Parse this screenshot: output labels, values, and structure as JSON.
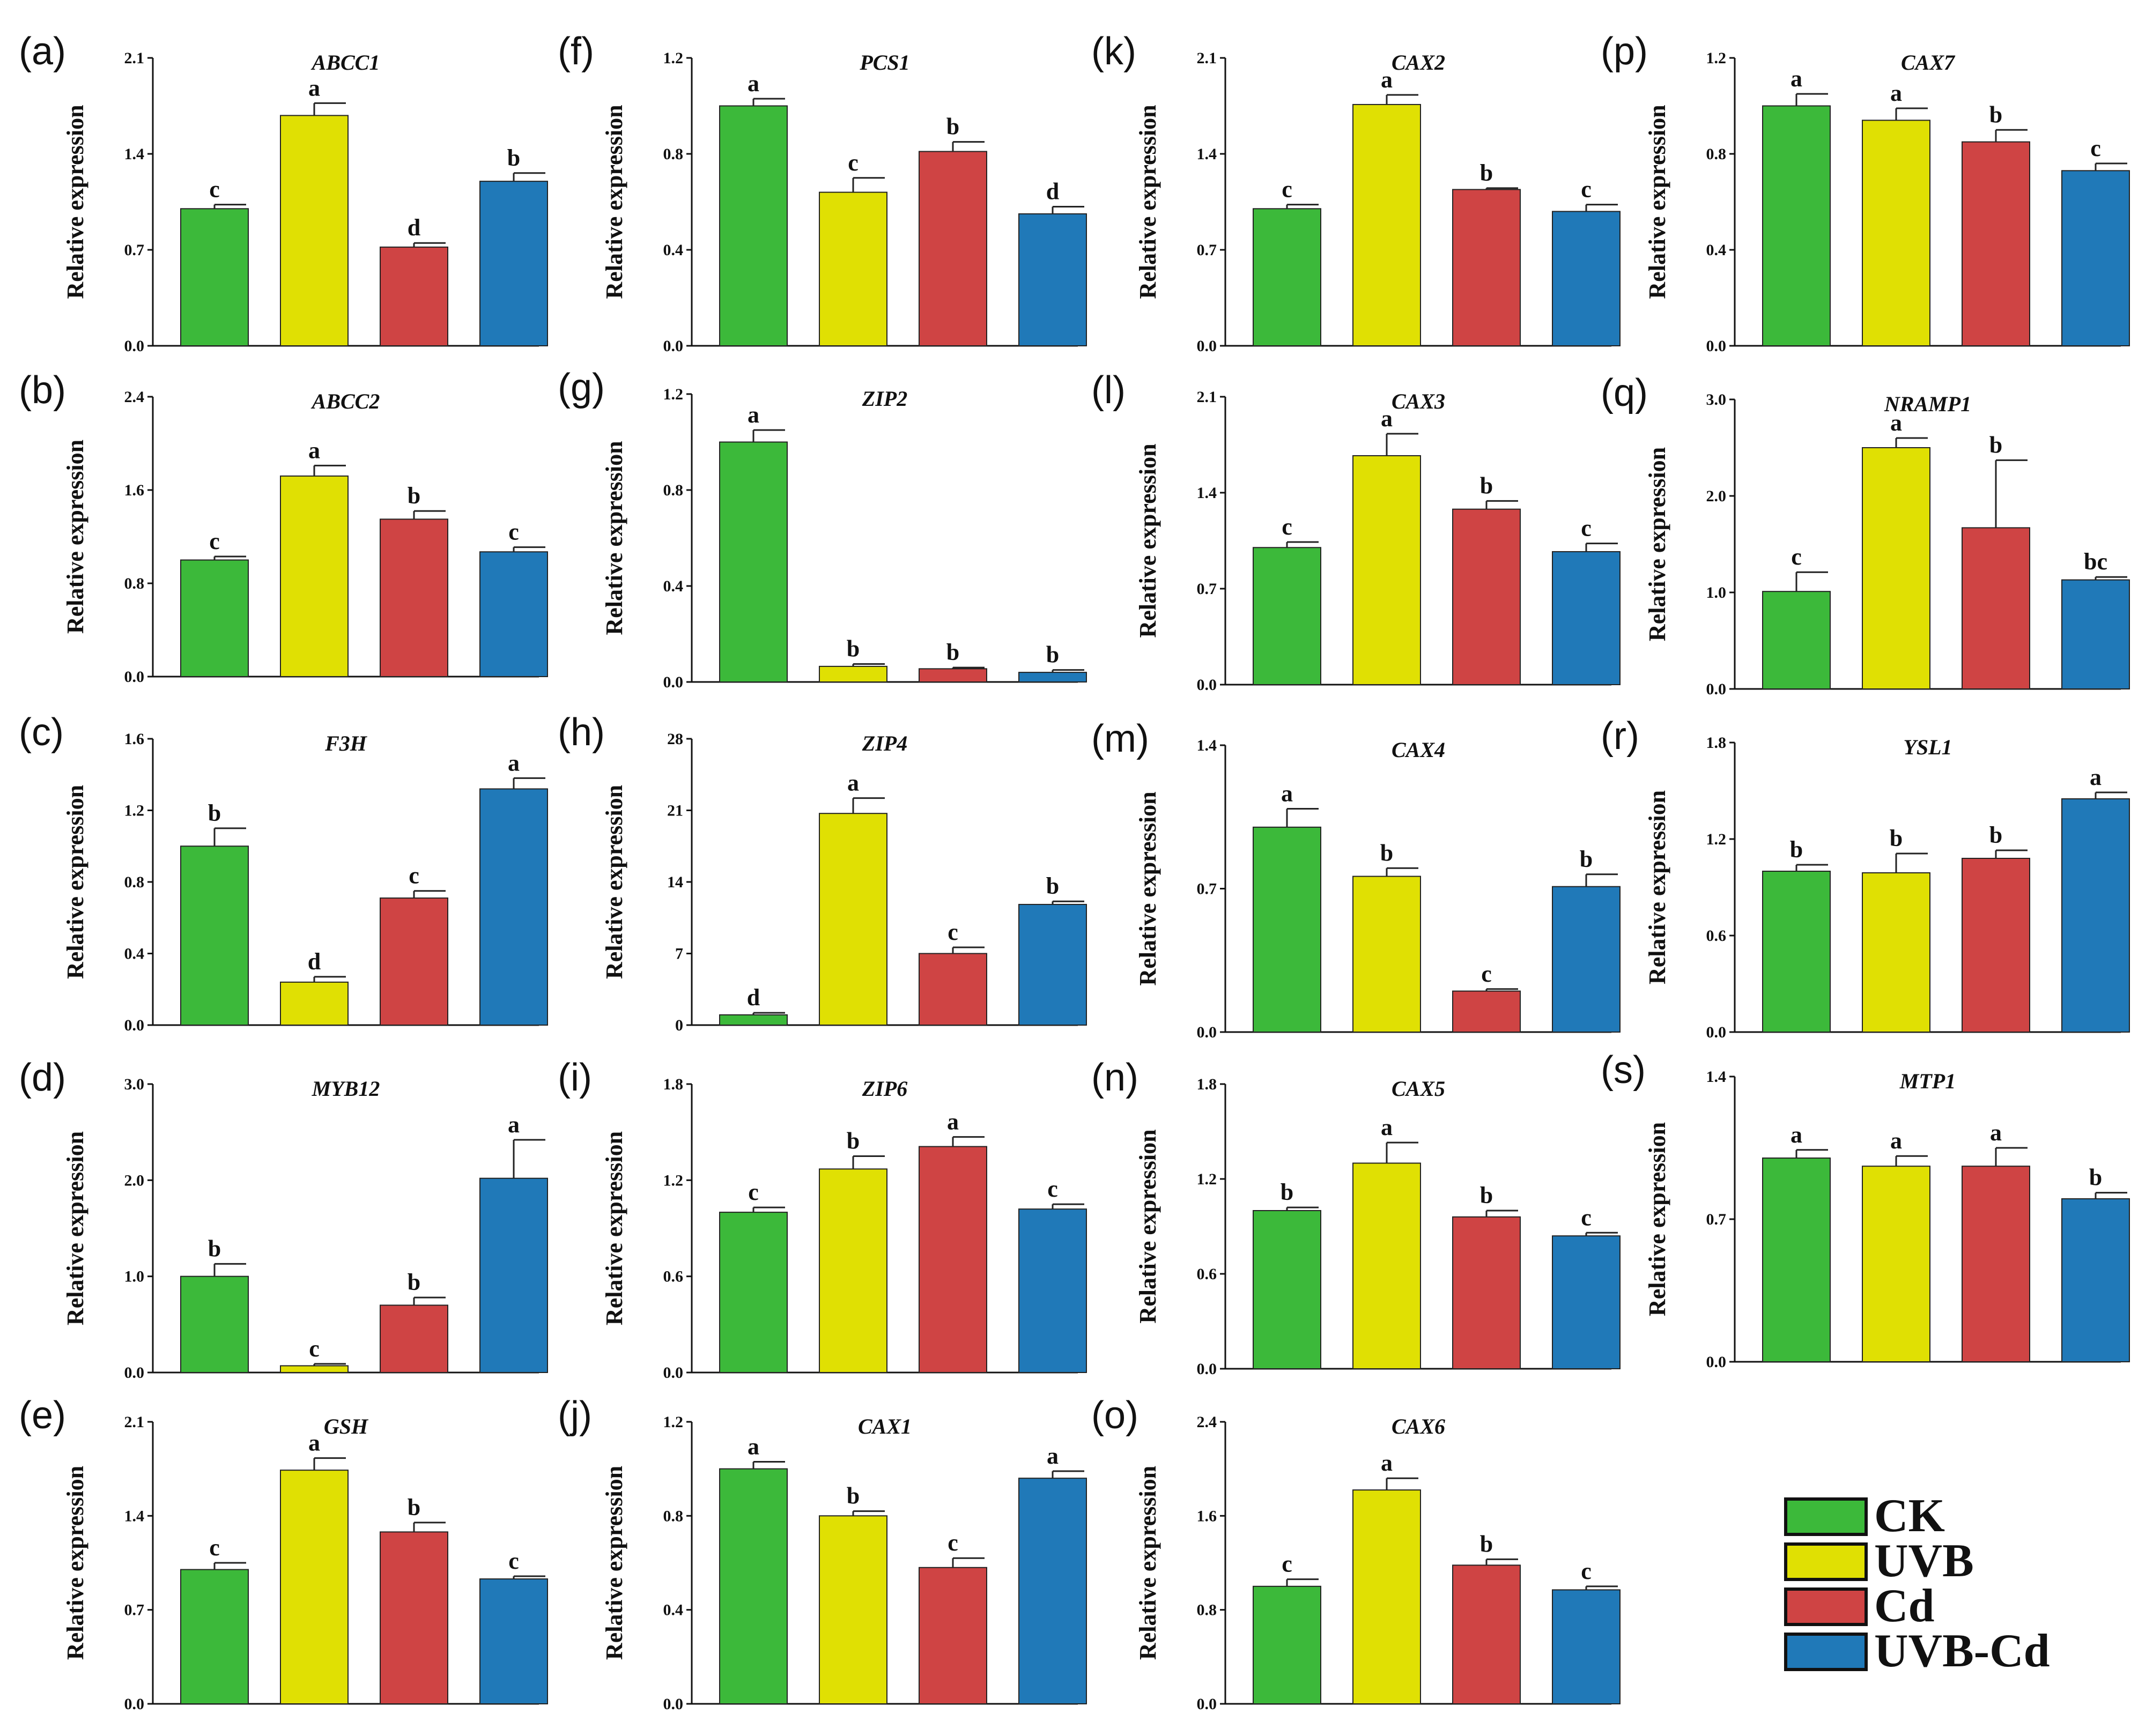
{
  "legend": {
    "items": [
      {
        "name": "CK",
        "color": "#3cb93a"
      },
      {
        "name": "UVB",
        "color": "#e0e003"
      },
      {
        "name": "Cd",
        "color": "#cf4444"
      },
      {
        "name": "UVB-Cd",
        "color": "#2079b8"
      }
    ]
  },
  "chart_data": [
    {
      "panel": "(a)",
      "type": "bar",
      "title": "ABCC1",
      "ylabel": "Relative expression",
      "categories": [
        "CK",
        "UVB",
        "Cd",
        "UVB-Cd"
      ],
      "values": [
        1.0,
        1.68,
        0.72,
        1.2
      ],
      "errors": [
        0.03,
        0.09,
        0.03,
        0.06
      ],
      "letters": [
        "c",
        "a",
        "d",
        "b"
      ],
      "ylim": [
        0,
        2.1
      ],
      "ticks": [
        "0.0",
        "0.7",
        "1.4",
        "2.1"
      ]
    },
    {
      "panel": "(b)",
      "type": "bar",
      "title": "ABCC2",
      "ylabel": "Relative expression",
      "categories": [
        "CK",
        "UVB",
        "Cd",
        "UVB-Cd"
      ],
      "values": [
        1.0,
        1.72,
        1.35,
        1.07
      ],
      "errors": [
        0.03,
        0.09,
        0.07,
        0.04
      ],
      "letters": [
        "c",
        "a",
        "b",
        "c"
      ],
      "ylim": [
        0,
        2.4
      ],
      "ticks": [
        "0.0",
        "0.8",
        "1.6",
        "2.4"
      ]
    },
    {
      "panel": "(c)",
      "type": "bar",
      "title": "F3H",
      "ylabel": "Relative expression",
      "categories": [
        "CK",
        "UVB",
        "Cd",
        "UVB-Cd"
      ],
      "values": [
        1.0,
        0.24,
        0.71,
        1.32
      ],
      "errors": [
        0.1,
        0.03,
        0.04,
        0.06
      ],
      "letters": [
        "b",
        "d",
        "c",
        "a"
      ],
      "ylim": [
        0,
        1.6
      ],
      "ticks": [
        "0.0",
        "0.4",
        "0.8",
        "1.2",
        "1.6"
      ]
    },
    {
      "panel": "(d)",
      "type": "bar",
      "title": "MYB12",
      "ylabel": "Relative expression",
      "categories": [
        "CK",
        "UVB",
        "Cd",
        "UVB-Cd"
      ],
      "values": [
        1.0,
        0.07,
        0.7,
        2.02
      ],
      "errors": [
        0.13,
        0.02,
        0.08,
        0.4
      ],
      "letters": [
        "b",
        "c",
        "b",
        "a"
      ],
      "ylim": [
        0,
        3.0
      ],
      "ticks": [
        "0.0",
        "1.0",
        "2.0",
        "3.0"
      ]
    },
    {
      "panel": "(e)",
      "type": "bar",
      "title": "GSH",
      "ylabel": "Relative expression",
      "categories": [
        "CK",
        "UVB",
        "Cd",
        "UVB-Cd"
      ],
      "values": [
        1.0,
        1.74,
        1.28,
        0.93
      ],
      "errors": [
        0.05,
        0.09,
        0.07,
        0.02
      ],
      "letters": [
        "c",
        "a",
        "b",
        "c"
      ],
      "ylim": [
        0,
        2.1
      ],
      "ticks": [
        "0.0",
        "0.7",
        "1.4",
        "2.1"
      ]
    },
    {
      "panel": "(f)",
      "type": "bar",
      "title": "PCS1",
      "ylabel": "Relative expression",
      "categories": [
        "CK",
        "UVB",
        "Cd",
        "UVB-Cd"
      ],
      "values": [
        1.0,
        0.64,
        0.81,
        0.55
      ],
      "errors": [
        0.03,
        0.06,
        0.04,
        0.03
      ],
      "letters": [
        "a",
        "c",
        "b",
        "d"
      ],
      "ylim": [
        0,
        1.2
      ],
      "ticks": [
        "0.0",
        "0.4",
        "0.8",
        "1.2"
      ]
    },
    {
      "panel": "(g)",
      "type": "bar",
      "title": "ZIP2",
      "ylabel": "Relative expression",
      "categories": [
        "CK",
        "UVB",
        "Cd",
        "UVB-Cd"
      ],
      "values": [
        1.0,
        0.065,
        0.055,
        0.04
      ],
      "errors": [
        0.05,
        0.01,
        0.005,
        0.01
      ],
      "letters": [
        "a",
        "b",
        "b",
        "b"
      ],
      "ylim": [
        0,
        1.2
      ],
      "ticks": [
        "0.0",
        "0.4",
        "0.8",
        "1.2"
      ]
    },
    {
      "panel": "(h)",
      "type": "bar",
      "title": "ZIP4",
      "ylabel": "Relative expression",
      "categories": [
        "CK",
        "UVB",
        "Cd",
        "UVB-Cd"
      ],
      "values": [
        1.0,
        20.7,
        7.0,
        11.8
      ],
      "errors": [
        0.2,
        1.5,
        0.6,
        0.3
      ],
      "letters": [
        "d",
        "a",
        "c",
        "b"
      ],
      "ylim": [
        0,
        28
      ],
      "ticks": [
        "0",
        "7",
        "14",
        "21",
        "28"
      ]
    },
    {
      "panel": "(i)",
      "type": "bar",
      "title": "ZIP6",
      "ylabel": "Relative expression",
      "categories": [
        "CK",
        "UVB",
        "Cd",
        "UVB-Cd"
      ],
      "values": [
        1.0,
        1.27,
        1.41,
        1.02
      ],
      "errors": [
        0.03,
        0.08,
        0.06,
        0.03
      ],
      "letters": [
        "c",
        "b",
        "a",
        "c"
      ],
      "ylim": [
        0,
        1.8
      ],
      "ticks": [
        "0.0",
        "0.6",
        "1.2",
        "1.8"
      ]
    },
    {
      "panel": "(j)",
      "type": "bar",
      "title": "CAX1",
      "ylabel": "Relative expression",
      "categories": [
        "CK",
        "UVB",
        "Cd",
        "UVB-Cd"
      ],
      "values": [
        1.0,
        0.8,
        0.58,
        0.96
      ],
      "errors": [
        0.03,
        0.02,
        0.04,
        0.03
      ],
      "letters": [
        "a",
        "b",
        "c",
        "a"
      ],
      "ylim": [
        0,
        1.2
      ],
      "ticks": [
        "0.0",
        "0.4",
        "0.8",
        "1.2"
      ]
    },
    {
      "panel": "(k)",
      "type": "bar",
      "title": "CAX2",
      "ylabel": "Relative expression",
      "categories": [
        "CK",
        "UVB",
        "Cd",
        "UVB-Cd"
      ],
      "values": [
        1.0,
        1.76,
        1.14,
        0.98
      ],
      "errors": [
        0.03,
        0.07,
        0.01,
        0.05
      ],
      "letters": [
        "c",
        "a",
        "b",
        "c"
      ],
      "ylim": [
        0,
        2.1
      ],
      "ticks": [
        "0.0",
        "0.7",
        "1.4",
        "2.1"
      ]
    },
    {
      "panel": "(l)",
      "type": "bar",
      "title": "CAX3",
      "ylabel": "Relative expression",
      "categories": [
        "CK",
        "UVB",
        "Cd",
        "UVB-Cd"
      ],
      "values": [
        1.0,
        1.67,
        1.28,
        0.97
      ],
      "errors": [
        0.04,
        0.16,
        0.06,
        0.06
      ],
      "letters": [
        "c",
        "a",
        "b",
        "c"
      ],
      "ylim": [
        0,
        2.1
      ],
      "ticks": [
        "0.0",
        "0.7",
        "1.4",
        "2.1"
      ]
    },
    {
      "panel": "(m)",
      "type": "bar",
      "title": "CAX4",
      "ylabel": "Relative expression",
      "categories": [
        "CK",
        "UVB",
        "Cd",
        "UVB-Cd"
      ],
      "values": [
        1.0,
        0.76,
        0.2,
        0.71
      ],
      "errors": [
        0.09,
        0.04,
        0.01,
        0.06
      ],
      "letters": [
        "a",
        "b",
        "c",
        "b"
      ],
      "ylim": [
        0,
        1.4
      ],
      "ticks": [
        "0.0",
        "0.7",
        "1.4"
      ]
    },
    {
      "panel": "(n)",
      "type": "bar",
      "title": "CAX5",
      "ylabel": "Relative expression",
      "categories": [
        "CK",
        "UVB",
        "Cd",
        "UVB-Cd"
      ],
      "values": [
        1.0,
        1.3,
        0.96,
        0.84
      ],
      "errors": [
        0.02,
        0.13,
        0.04,
        0.02
      ],
      "letters": [
        "b",
        "a",
        "b",
        "c"
      ],
      "ylim": [
        0,
        1.8
      ],
      "ticks": [
        "0.0",
        "0.6",
        "1.2",
        "1.8"
      ]
    },
    {
      "panel": "(o)",
      "type": "bar",
      "title": "CAX6",
      "ylabel": "Relative expression",
      "categories": [
        "CK",
        "UVB",
        "Cd",
        "UVB-Cd"
      ],
      "values": [
        1.0,
        1.82,
        1.18,
        0.97
      ],
      "errors": [
        0.06,
        0.1,
        0.05,
        0.03
      ],
      "letters": [
        "c",
        "a",
        "b",
        "c"
      ],
      "ylim": [
        0,
        2.4
      ],
      "ticks": [
        "0.0",
        "0.8",
        "1.6",
        "2.4"
      ]
    },
    {
      "panel": "(p)",
      "type": "bar",
      "title": "CAX7",
      "ylabel": "Relative expression",
      "categories": [
        "CK",
        "UVB",
        "Cd",
        "UVB-Cd"
      ],
      "values": [
        1.0,
        0.94,
        0.85,
        0.73
      ],
      "errors": [
        0.05,
        0.05,
        0.05,
        0.03
      ],
      "letters": [
        "a",
        "a",
        "b",
        "c"
      ],
      "ylim": [
        0,
        1.2
      ],
      "ticks": [
        "0.0",
        "0.4",
        "0.8",
        "1.2"
      ]
    },
    {
      "panel": "(q)",
      "type": "bar",
      "title": "NRAMP1",
      "ylabel": "Relative expression",
      "categories": [
        "CK",
        "UVB",
        "Cd",
        "UVB-Cd"
      ],
      "values": [
        1.01,
        2.5,
        1.67,
        1.13
      ],
      "errors": [
        0.2,
        0.1,
        0.7,
        0.03
      ],
      "letters": [
        "c",
        "a",
        "b",
        "bc"
      ],
      "ylim": [
        0,
        3.0
      ],
      "ticks": [
        "0.0",
        "1.0",
        "2.0",
        "3.0"
      ]
    },
    {
      "panel": "(r)",
      "type": "bar",
      "title": "YSL1",
      "ylabel": "Relative expression",
      "categories": [
        "CK",
        "UVB",
        "Cd",
        "UVB-Cd"
      ],
      "values": [
        1.0,
        0.99,
        1.08,
        1.45
      ],
      "errors": [
        0.04,
        0.12,
        0.05,
        0.04
      ],
      "letters": [
        "b",
        "b",
        "b",
        "a"
      ],
      "ylim": [
        0,
        1.8
      ],
      "ticks": [
        "0.0",
        "0.6",
        "1.2",
        "1.8"
      ]
    },
    {
      "panel": "(s)",
      "type": "bar",
      "title": "MTP1",
      "ylabel": "Relative expression",
      "categories": [
        "CK",
        "UVB",
        "Cd",
        "UVB-Cd"
      ],
      "values": [
        1.0,
        0.96,
        0.96,
        0.8
      ],
      "errors": [
        0.04,
        0.05,
        0.09,
        0.03
      ],
      "letters": [
        "a",
        "a",
        "a",
        "b"
      ],
      "ylim": [
        0,
        1.4
      ],
      "ticks": [
        "0.0",
        "0.7",
        "1.4"
      ]
    }
  ]
}
